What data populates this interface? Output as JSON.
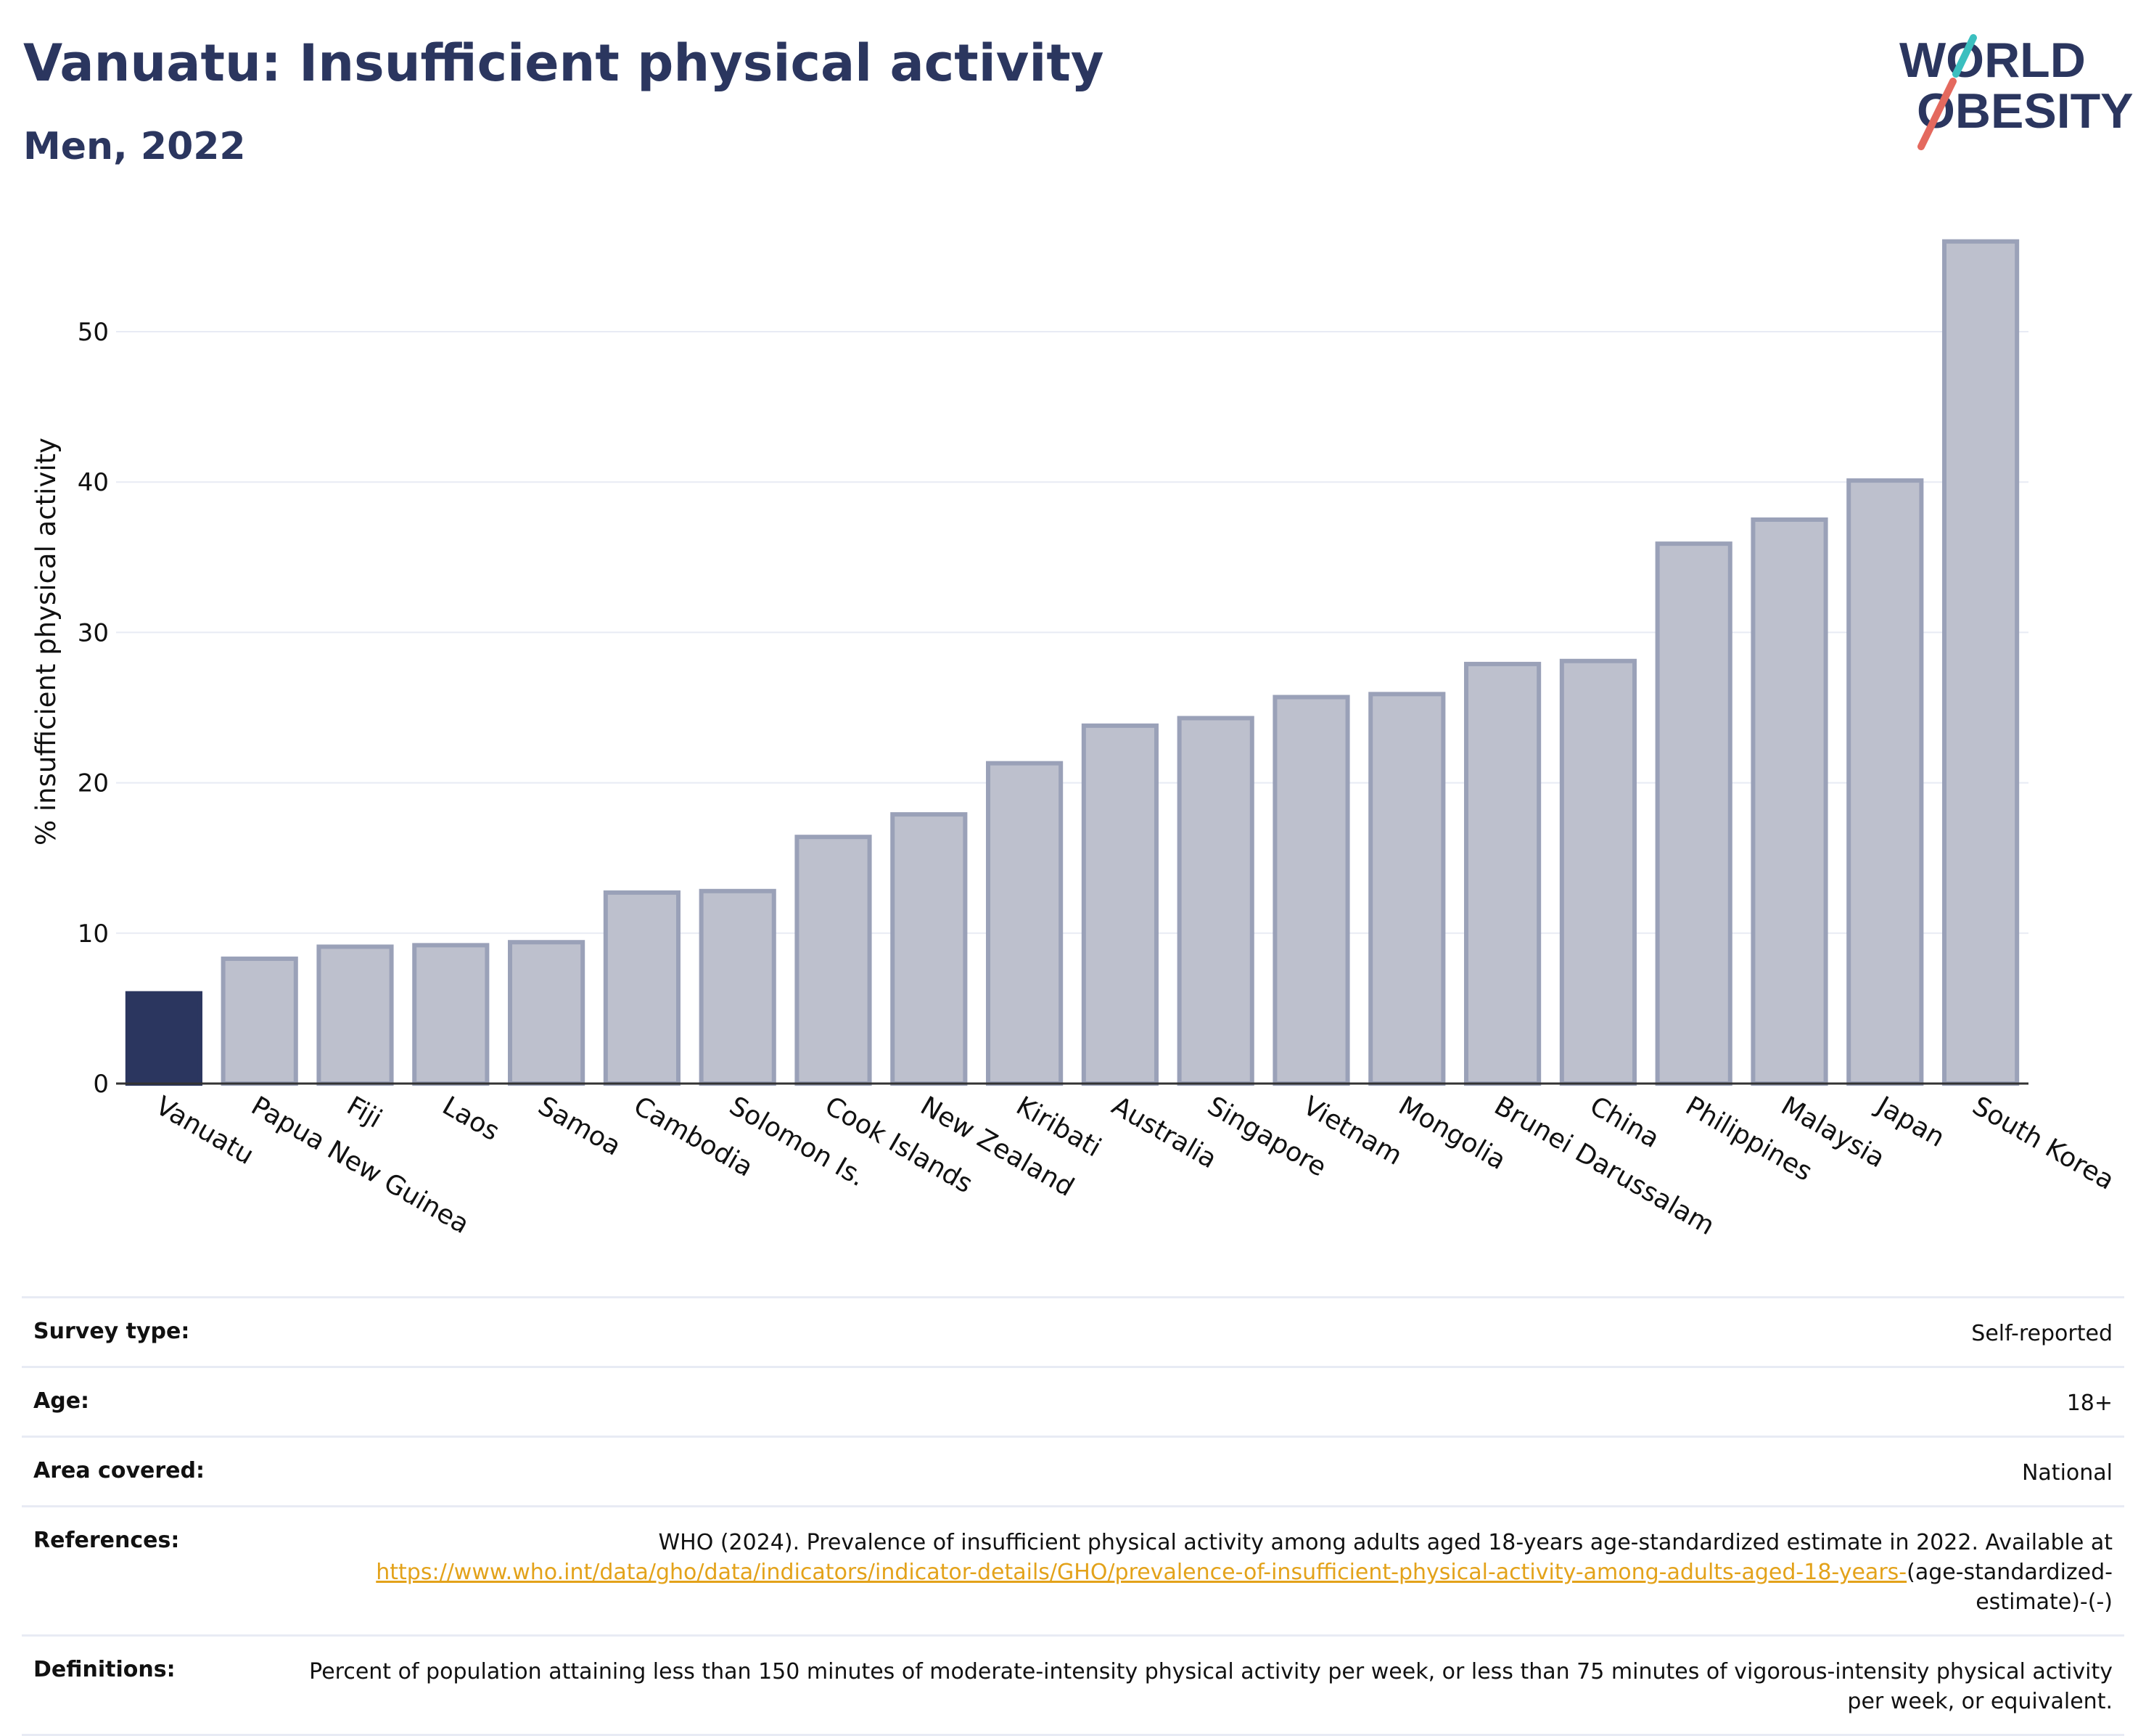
{
  "header": {
    "title": "Vanuatu: Insufficient physical activity",
    "subtitle": "Men, 2022"
  },
  "logo": {
    "line1": "WORLD",
    "line2": "OBESITY",
    "colors": {
      "text": "#2b365f",
      "slash_red": "#e4695e",
      "slash_teal": "#3bbfbf"
    }
  },
  "chart_data": {
    "type": "bar",
    "title": "Vanuatu: Insufficient physical activity",
    "subtitle": "Men, 2022",
    "xlabel": "",
    "ylabel": "% insufficient physical activity",
    "ylim": [
      0,
      58
    ],
    "yticks": [
      0,
      10,
      20,
      30,
      40,
      50
    ],
    "grid": true,
    "highlight": "Vanuatu",
    "colors": {
      "highlight": "#2b365f",
      "bar_fill": "#bdc0cd",
      "bar_stroke": "#9aa1b8",
      "grid": "#e8ebf4"
    },
    "categories": [
      "Vanuatu",
      "Papua New Guinea",
      "Fiji",
      "Laos",
      "Samoa",
      "Cambodia",
      "Solomon Is.",
      "Cook Islands",
      "New Zealand",
      "Kiribati",
      "Australia",
      "Singapore",
      "Vietnam",
      "Mongolia",
      "Brunei Darussalam",
      "China",
      "Philippines",
      "Malaysia",
      "Japan",
      "South Korea"
    ],
    "values": [
      6.0,
      8.3,
      9.1,
      9.2,
      9.4,
      12.7,
      12.8,
      16.4,
      17.9,
      21.3,
      23.8,
      24.3,
      25.7,
      25.9,
      27.9,
      28.1,
      35.9,
      37.5,
      40.1,
      56.0
    ]
  },
  "info": {
    "survey_type": {
      "label": "Survey type:",
      "value": "Self-reported"
    },
    "age": {
      "label": "Age:",
      "value": "18+"
    },
    "area": {
      "label": "Area covered:",
      "value": "National"
    },
    "references": {
      "label": "References:",
      "text": "WHO (2024). Prevalence of insufficient physical activity among adults aged 18-years age-standardized estimate in 2022. Available at",
      "link": "https://www.who.int/data/gho/data/indicators/indicator-details/GHO/prevalence-of-insufficient-physical-activity-among-adults-aged-18-years-",
      "suffix": "(age-standardized-estimate)-(-)"
    },
    "definitions": {
      "label": "Definitions:",
      "value": "Percent of population attaining less than 150 minutes of moderate-intensity physical activity per week, or less than 75 minutes of vigorous-intensity physical activity per week, or equivalent."
    }
  }
}
